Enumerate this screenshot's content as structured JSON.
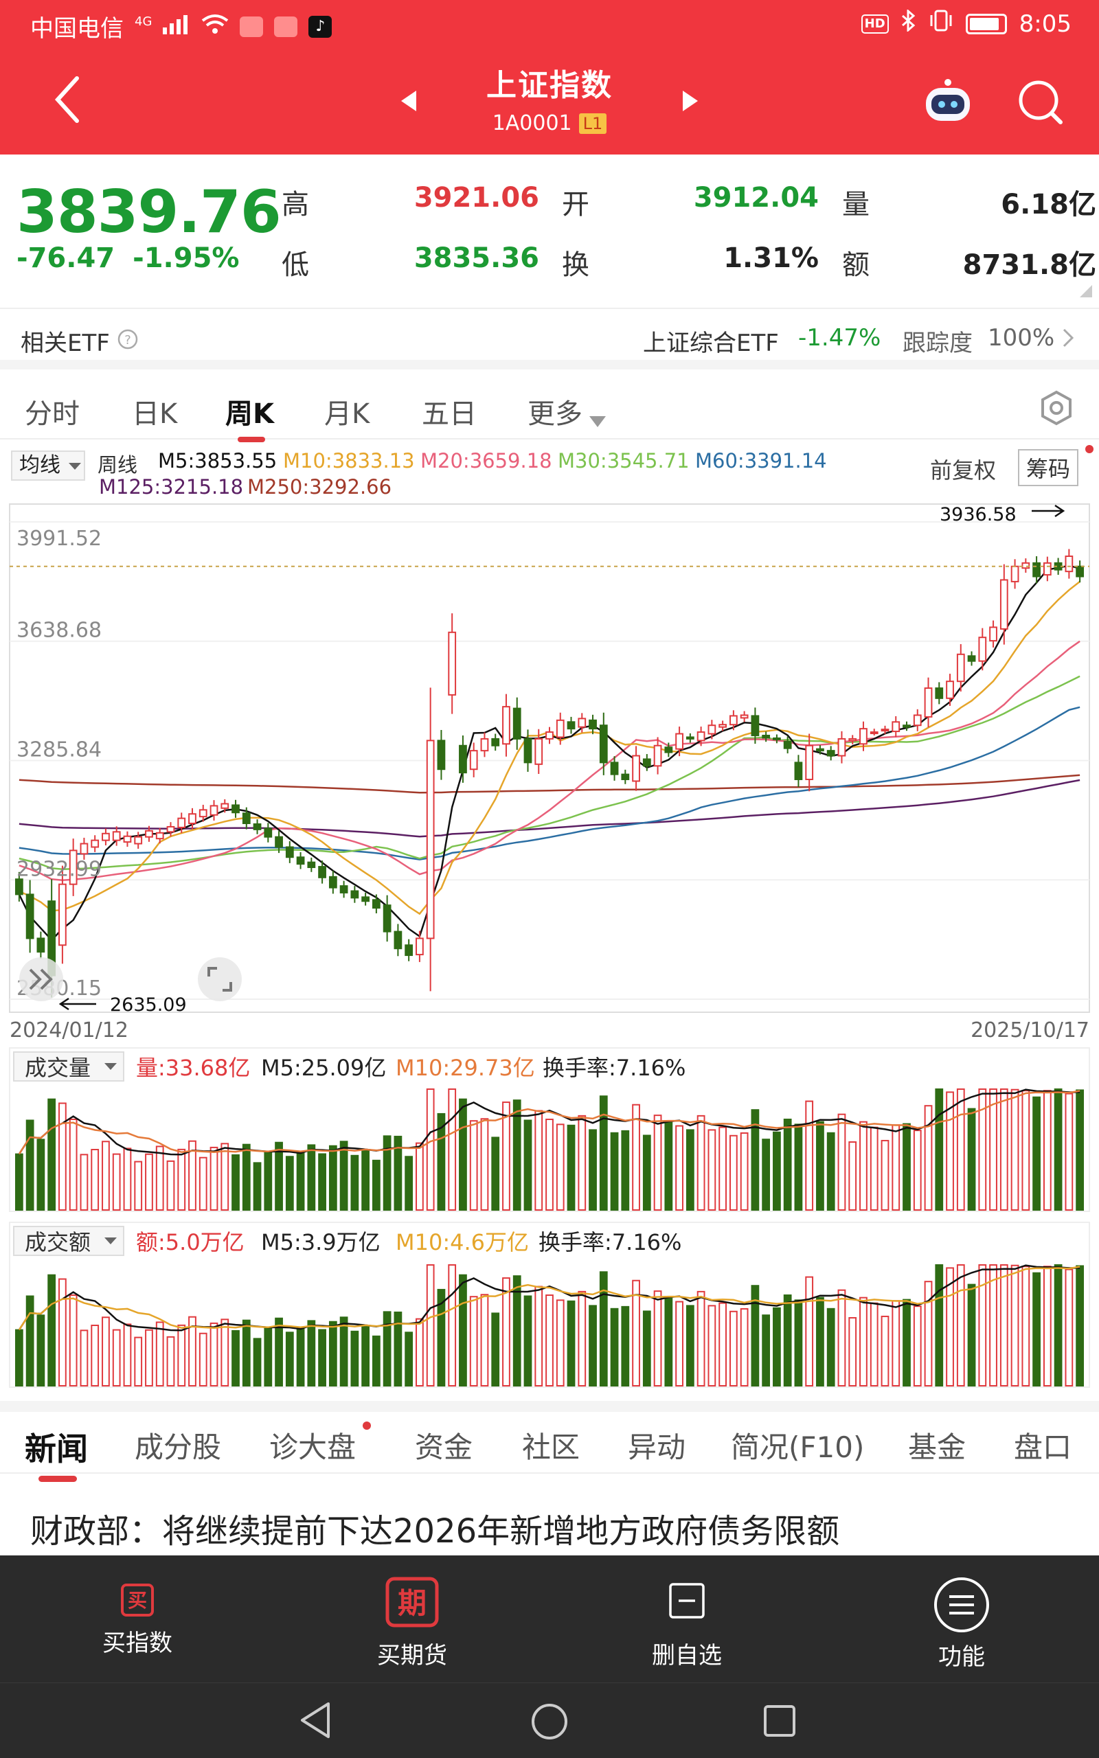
{
  "status_bar": {
    "carrier": "中国电信",
    "network": "4G",
    "time": "8:05",
    "hd": "HD"
  },
  "header": {
    "title": "上证指数",
    "code": "1A0001",
    "level": "L1"
  },
  "quote": {
    "price": "3839.76",
    "change": "-76.47",
    "change_pct": "-1.95%",
    "high_label": "高",
    "high": "3921.06",
    "open_label": "开",
    "open": "3912.04",
    "volume_label": "量",
    "volume": "6.18亿",
    "low_label": "低",
    "low": "3835.36",
    "turnover_label": "换",
    "turnover": "1.31%",
    "amount_label": "额",
    "amount": "8731.8亿"
  },
  "etf": {
    "label": "相关ETF",
    "name": "上证综合ETF",
    "change": "-1.47%",
    "track_label": "跟踪度",
    "track_value": "100%"
  },
  "period_tabs": [
    "分时",
    "日K",
    "周K",
    "月K",
    "五日",
    "更多"
  ],
  "active_period": "周K",
  "ma_legend": {
    "selector": "均线",
    "type": "周线",
    "m5": "M5:3853.55",
    "m10": "M10:3833.13",
    "m20": "M20:3659.18",
    "m30": "M30:3545.71",
    "m60": "M60:3391.14",
    "m125": "M125:3215.18",
    "m250": "M250:3292.66",
    "adjust": "前复权",
    "chips": "筹码"
  },
  "colors": {
    "up": "#e03a3e",
    "down": "#2e6b14",
    "m5": "#111111",
    "m10": "#e5a52a",
    "m20": "#e8607a",
    "m30": "#7cc24e",
    "m60": "#2b6ea3",
    "m125": "#5b1f63",
    "m250": "#a23a2a"
  },
  "chart_data": {
    "type": "candlestick",
    "y_ticks": [
      "3991.52",
      "3638.68",
      "3285.84",
      "2932.99",
      "2580.15"
    ],
    "ylim": [
      2580.15,
      3991.52
    ],
    "x_start": "2024/01/12",
    "x_end": "2025/10/17",
    "max_label": "3936.58",
    "min_label": "2635.09",
    "candles": [
      [
        2935,
        2890
      ],
      [
        2890,
        2760
      ],
      [
        2760,
        2720
      ],
      [
        2870,
        2650
      ],
      [
        2740,
        2920
      ],
      [
        2920,
        3020
      ],
      [
        3010,
        3040
      ],
      [
        3030,
        3050
      ],
      [
        3050,
        3070
      ],
      [
        3050,
        3075
      ],
      [
        3045,
        3062
      ],
      [
        3040,
        3060
      ],
      [
        3060,
        3078
      ],
      [
        3055,
        3072
      ],
      [
        3075,
        3090
      ],
      [
        3088,
        3115
      ],
      [
        3100,
        3128
      ],
      [
        3120,
        3140
      ],
      [
        3125,
        3152
      ],
      [
        3145,
        3158
      ],
      [
        3154,
        3132
      ],
      [
        3130,
        3100
      ],
      [
        3098,
        3082
      ],
      [
        3085,
        3060
      ],
      [
        3060,
        3030
      ],
      [
        3030,
        3000
      ],
      [
        3000,
        2980
      ],
      [
        2985,
        2970
      ],
      [
        2972,
        2940
      ],
      [
        2942,
        2910
      ],
      [
        2915,
        2895
      ],
      [
        2900,
        2880
      ],
      [
        2882,
        2870
      ],
      [
        2874,
        2850
      ],
      [
        2858,
        2780
      ],
      [
        2780,
        2730
      ],
      [
        2740,
        2710
      ],
      [
        2712,
        2760
      ],
      [
        2760,
        3345
      ],
      [
        3345,
        3260
      ],
      [
        3480,
        3665
      ],
      [
        3330,
        3250
      ],
      [
        3260,
        3315
      ],
      [
        3315,
        3350
      ],
      [
        3350,
        3330
      ],
      [
        3335,
        3445
      ],
      [
        3440,
        3350
      ],
      [
        3350,
        3280
      ],
      [
        3275,
        3350
      ],
      [
        3350,
        3370
      ],
      [
        3355,
        3405
      ],
      [
        3400,
        3380
      ],
      [
        3385,
        3410
      ],
      [
        3405,
        3380
      ],
      [
        3390,
        3280
      ],
      [
        3280,
        3245
      ],
      [
        3245,
        3230
      ],
      [
        3225,
        3300
      ],
      [
        3290,
        3270
      ],
      [
        3270,
        3330
      ],
      [
        3325,
        3310
      ],
      [
        3320,
        3365
      ],
      [
        3355,
        3350
      ],
      [
        3345,
        3370
      ],
      [
        3365,
        3390
      ],
      [
        3385,
        3392
      ],
      [
        3392,
        3418
      ],
      [
        3412,
        3420
      ],
      [
        3418,
        3360
      ],
      [
        3360,
        3353
      ],
      [
        3352,
        3348
      ],
      [
        3342,
        3322
      ],
      [
        3280,
        3230
      ],
      [
        3230,
        3330
      ],
      [
        3320,
        3315
      ],
      [
        3315,
        3300
      ],
      [
        3300,
        3350
      ],
      [
        3345,
        3350
      ],
      [
        3335,
        3380
      ],
      [
        3370,
        3370
      ],
      [
        3375,
        3378
      ],
      [
        3372,
        3400
      ],
      [
        3390,
        3385
      ],
      [
        3390,
        3420
      ],
      [
        3415,
        3500
      ],
      [
        3500,
        3470
      ],
      [
        3470,
        3520
      ],
      [
        3520,
        3600
      ],
      [
        3595,
        3580
      ],
      [
        3580,
        3650
      ],
      [
        3640,
        3680
      ],
      [
        3675,
        3820
      ],
      [
        3815,
        3860
      ],
      [
        3855,
        3870
      ],
      [
        3870,
        3830
      ],
      [
        3835,
        3870
      ],
      [
        3870,
        3850
      ],
      [
        3845,
        3890
      ],
      [
        3860,
        3830
      ]
    ],
    "volume_panel": {
      "label": "成交量",
      "value": "量:33.68亿",
      "m5": "M5:25.09亿",
      "m10": "M10:29.73亿",
      "turnover": "换手率:7.16%"
    },
    "amount_panel": {
      "label": "成交额",
      "value": "额:5.0万亿",
      "m5": "M5:3.9万亿",
      "m10": "M10:4.6万亿",
      "turnover": "换手率:7.16%"
    }
  },
  "news_tabs": [
    "新闻",
    "成分股",
    "诊大盘",
    "资金",
    "社区",
    "异动",
    "简况(F10)",
    "基金",
    "盘口"
  ],
  "headline": "财政部：将继续提前下达2026年新增地方政府债务限额",
  "action_bar": [
    {
      "label": "买指数",
      "icon": "buy-icon",
      "glyph": "买"
    },
    {
      "label": "买期货",
      "icon": "futures-icon",
      "glyph": "期"
    },
    {
      "label": "删自选",
      "icon": "remove-watchlist-icon",
      "glyph": "—"
    },
    {
      "label": "功能",
      "icon": "menu-icon",
      "glyph": "≡"
    }
  ]
}
